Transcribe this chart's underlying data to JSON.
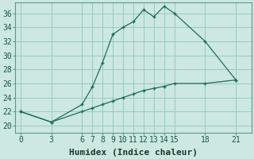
{
  "xlabel": "Humidex (Indice chaleur)",
  "ylabel": "",
  "background_color": "#cce8e0",
  "grid_color": "#99ccc0",
  "line_color": "#1a6e5e",
  "x_ticks": [
    0,
    3,
    6,
    7,
    8,
    9,
    10,
    11,
    12,
    13,
    14,
    15,
    18,
    21
  ],
  "y_ticks": [
    20,
    22,
    24,
    26,
    28,
    30,
    32,
    34,
    36
  ],
  "ylim": [
    19.0,
    37.5
  ],
  "xlim": [
    -0.5,
    22.5
  ],
  "line1_x": [
    0,
    3,
    6,
    7,
    8,
    9,
    10,
    11,
    12,
    13,
    14,
    15,
    18,
    21
  ],
  "line1_y": [
    22,
    20.5,
    23,
    25.5,
    29,
    33,
    34,
    34.8,
    36.5,
    35.5,
    37.0,
    36.0,
    32,
    26.5
  ],
  "line2_x": [
    0,
    3,
    6,
    7,
    8,
    9,
    10,
    11,
    12,
    13,
    14,
    15,
    18,
    21
  ],
  "line2_y": [
    22,
    20.5,
    22.0,
    22.5,
    23.0,
    23.5,
    24.0,
    24.5,
    25.0,
    25.3,
    25.6,
    26.0,
    26.0,
    26.5
  ],
  "font_family": "monospace",
  "xlabel_fontsize": 8,
  "tick_fontsize": 7
}
